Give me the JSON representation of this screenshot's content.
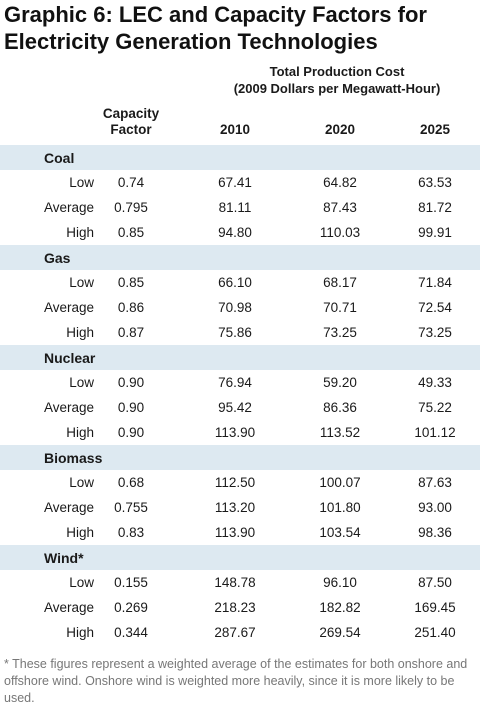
{
  "title": {
    "line1": "Graphic 6: LEC and Capacity Factors for",
    "line2": "Electricity Generation Technologies"
  },
  "production_header": {
    "line1": "Total Production Cost",
    "line2": "(2009 Dollars per Megawatt-Hour)"
  },
  "columns": {
    "capacity_line1": "Capacity",
    "capacity_line2": "Factor",
    "years": [
      "2010",
      "2020",
      "2025"
    ]
  },
  "groups": [
    {
      "name": "Coal",
      "rows": [
        {
          "level": "Low",
          "capacity": "0.74",
          "values": [
            "67.41",
            "64.82",
            "63.53"
          ]
        },
        {
          "level": "Average",
          "capacity": "0.795",
          "values": [
            "81.11",
            "87.43",
            "81.72"
          ]
        },
        {
          "level": "High",
          "capacity": "0.85",
          "values": [
            "94.80",
            "110.03",
            "99.91"
          ]
        }
      ]
    },
    {
      "name": "Gas",
      "rows": [
        {
          "level": "Low",
          "capacity": "0.85",
          "values": [
            "66.10",
            "68.17",
            "71.84"
          ]
        },
        {
          "level": "Average",
          "capacity": "0.86",
          "values": [
            "70.98",
            "70.71",
            "72.54"
          ]
        },
        {
          "level": "High",
          "capacity": "0.87",
          "values": [
            "75.86",
            "73.25",
            "73.25"
          ]
        }
      ]
    },
    {
      "name": "Nuclear",
      "rows": [
        {
          "level": "Low",
          "capacity": "0.90",
          "values": [
            "76.94",
            "59.20",
            "49.33"
          ]
        },
        {
          "level": "Average",
          "capacity": "0.90",
          "values": [
            "95.42",
            "86.36",
            "75.22"
          ]
        },
        {
          "level": "High",
          "capacity": "0.90",
          "values": [
            "113.90",
            "113.52",
            "101.12"
          ]
        }
      ]
    },
    {
      "name": "Biomass",
      "rows": [
        {
          "level": "Low",
          "capacity": "0.68",
          "values": [
            "112.50",
            "100.07",
            "87.63"
          ]
        },
        {
          "level": "Average",
          "capacity": "0.755",
          "values": [
            "113.20",
            "101.80",
            "93.00"
          ]
        },
        {
          "level": "High",
          "capacity": "0.83",
          "values": [
            "113.90",
            "103.54",
            "98.36"
          ]
        }
      ]
    },
    {
      "name": "Wind*",
      "rows": [
        {
          "level": "Low",
          "capacity": "0.155",
          "values": [
            "148.78",
            "96.10",
            "87.50"
          ]
        },
        {
          "level": "Average",
          "capacity": "0.269",
          "values": [
            "218.23",
            "182.82",
            "169.45"
          ]
        },
        {
          "level": "High",
          "capacity": "0.344",
          "values": [
            "287.67",
            "269.54",
            "251.40"
          ]
        }
      ]
    }
  ],
  "footnote": "* These figures represent a weighted average of the estimates for both onshore and offshore wind. Onshore wind is weighted more heavily, since it is more likely to be used.",
  "colors": {
    "group_band": "#dde9f1",
    "footnote_text": "#777777"
  }
}
